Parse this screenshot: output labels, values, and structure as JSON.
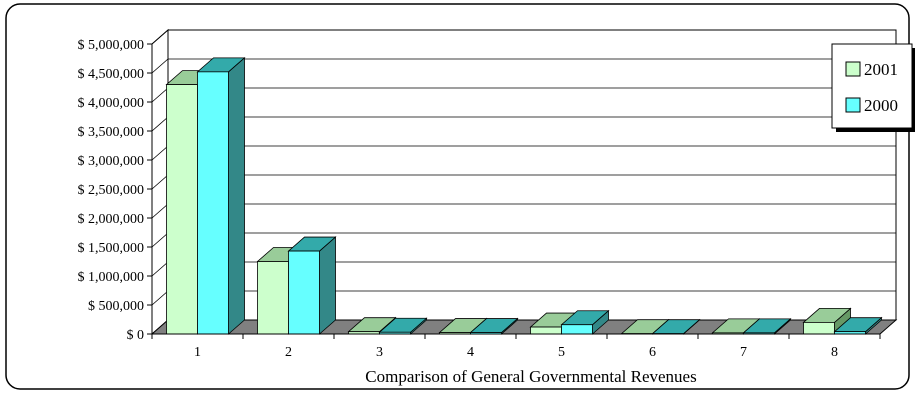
{
  "chart_data": {
    "type": "bar",
    "title": "",
    "xlabel": "Comparison of General Governmental Revenues",
    "ylabel": "",
    "categories": [
      "1",
      "2",
      "3",
      "4",
      "5",
      "6",
      "7",
      "8"
    ],
    "series": [
      {
        "name": "2001",
        "values": [
          4300000,
          1250000,
          40000,
          25000,
          120000,
          5000,
          20000,
          200000
        ]
      },
      {
        "name": "2000",
        "values": [
          4520000,
          1430000,
          30000,
          25000,
          160000,
          5000,
          20000,
          40000
        ]
      }
    ],
    "ylim": [
      0,
      5000000
    ],
    "ytick_step": 500000,
    "ytick_labels": [
      "$ 0",
      "$ 500,000",
      "$ 1,000,000",
      "$ 1,500,000",
      "$ 2,000,000",
      "$ 2,500,000",
      "$ 3,000,000",
      "$ 3,500,000",
      "$ 4,000,000",
      "$ 4,500,000",
      "$ 5,000,000"
    ],
    "grid": true,
    "legend_position": "right",
    "colors": {
      "series_2001_front": "#ccffcc",
      "series_2001_top": "#99cc99",
      "series_2001_side": "#669966",
      "series_2000_front": "#66ffff",
      "series_2000_top": "#33aaaa",
      "series_2000_side": "#338888",
      "floor": "#808080",
      "wall": "#ffffff",
      "gridline": "#000000"
    }
  }
}
